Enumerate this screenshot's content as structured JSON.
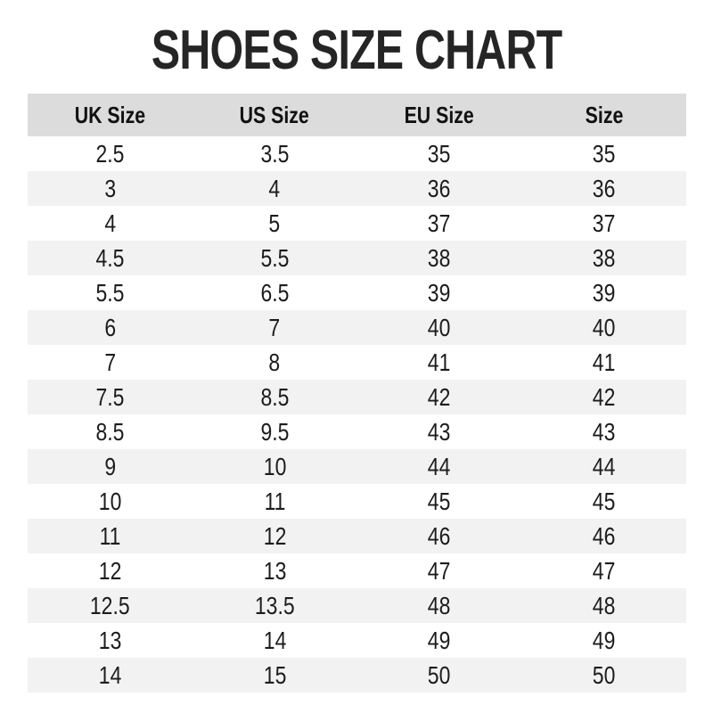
{
  "page": {
    "title": "SHOES SIZE CHART"
  },
  "colors": {
    "header_bg": "#dcdcdc",
    "stripe_bg": "#f2f2f2",
    "title_text": "#252525",
    "cell_text": "#1c1c1c",
    "background": "#ffffff"
  },
  "chart_data": {
    "type": "table",
    "title": "SHOES SIZE CHART",
    "columns": [
      "UK Size",
      "US Size",
      "EU Size",
      "Size"
    ],
    "rows": [
      [
        "2.5",
        "3.5",
        "35",
        "35"
      ],
      [
        "3",
        "4",
        "36",
        "36"
      ],
      [
        "4",
        "5",
        "37",
        "37"
      ],
      [
        "4.5",
        "5.5",
        "38",
        "38"
      ],
      [
        "5.5",
        "6.5",
        "39",
        "39"
      ],
      [
        "6",
        "7",
        "40",
        "40"
      ],
      [
        "7",
        "8",
        "41",
        "41"
      ],
      [
        "7.5",
        "8.5",
        "42",
        "42"
      ],
      [
        "8.5",
        "9.5",
        "43",
        "43"
      ],
      [
        "9",
        "10",
        "44",
        "44"
      ],
      [
        "10",
        "11",
        "45",
        "45"
      ],
      [
        "11",
        "12",
        "46",
        "46"
      ],
      [
        "12",
        "13",
        "47",
        "47"
      ],
      [
        "12.5",
        "13.5",
        "48",
        "48"
      ],
      [
        "13",
        "14",
        "49",
        "49"
      ],
      [
        "14",
        "15",
        "50",
        "50"
      ]
    ],
    "layout": {
      "zebra_striping": true,
      "header_background": "#dcdcdc",
      "stripe_background": "#f2f2f2",
      "column_alignment": "center"
    }
  }
}
